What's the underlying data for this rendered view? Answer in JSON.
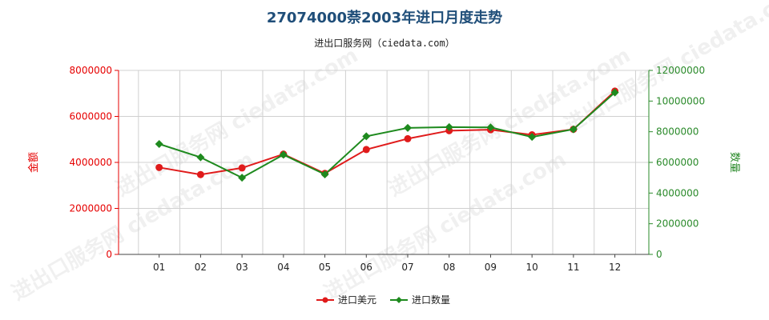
{
  "page": {
    "title": "27074000萘2003年进口月度走势",
    "subtitle": "进出口服务网（ciedata.com）",
    "watermark_text": "进出口服务网 ciedata.com"
  },
  "colors": {
    "title": "#1f4e79",
    "left_axis": "#e60000",
    "right_axis": "#2a8a2a",
    "grid": "#d0d0d0",
    "series_amount": "#e01b1b",
    "series_quantity": "#1e8a1e"
  },
  "chart_data": {
    "type": "line",
    "title": "27074000萘2003年进口月度走势",
    "subtitle": "进出口服务网（ciedata.com）",
    "categories": [
      "01",
      "02",
      "03",
      "04",
      "05",
      "06",
      "07",
      "08",
      "09",
      "10",
      "11",
      "12"
    ],
    "y_left": {
      "label": "金额",
      "range": [
        0,
        8000000
      ],
      "ticks": [
        "0",
        "2000000",
        "4000000",
        "6000000",
        "8000000"
      ],
      "tick_values": [
        0,
        2000000,
        4000000,
        6000000,
        8000000
      ]
    },
    "y_right": {
      "label": "数量",
      "range": [
        0,
        12000000
      ],
      "ticks": [
        "0",
        "2000000",
        "4000000",
        "6000000",
        "8000000",
        "10000000",
        "12000000"
      ],
      "tick_values": [
        0,
        2000000,
        4000000,
        6000000,
        8000000,
        10000000,
        12000000
      ]
    },
    "series": [
      {
        "name": "进口美元",
        "axis": "left",
        "color": "#e01b1b",
        "marker": "circle",
        "values": [
          3780000,
          3470000,
          3760000,
          4360000,
          3520000,
          4560000,
          5030000,
          5380000,
          5420000,
          5200000,
          5440000,
          7100000
        ]
      },
      {
        "name": "进口数量",
        "axis": "right",
        "color": "#1e8a1e",
        "marker": "diamond",
        "values": [
          7200000,
          6330000,
          5000000,
          6500000,
          5220000,
          7700000,
          8250000,
          8300000,
          8280000,
          7660000,
          8160000,
          10560000
        ]
      }
    ],
    "grid": true,
    "legend_position": "bottom-center"
  }
}
